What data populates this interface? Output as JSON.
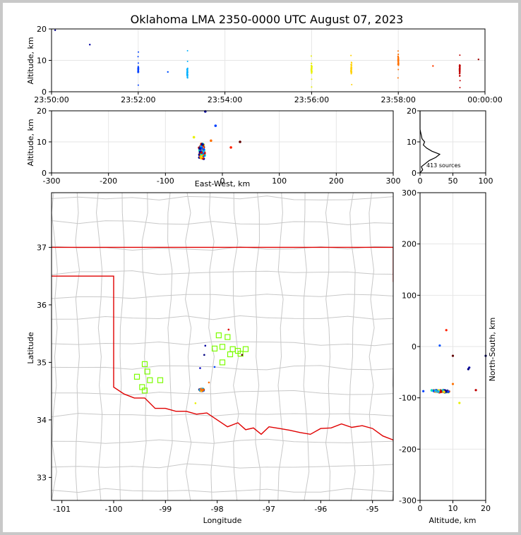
{
  "figure": {
    "title": "Oklahoma LMA 2350-0000 UTC August 07, 2023",
    "source_count_label": "413 sources"
  },
  "colors": {
    "frame": "#c8c8c8",
    "state_border": "#e00000",
    "county_border": "#c8c8c8",
    "station": "#7cfc00",
    "grid": "#e6e6e6"
  },
  "chart_data": [
    {
      "name": "time-altitude",
      "type": "scatter",
      "xlabel": "",
      "ylabel": "Altitude, km",
      "xticks": [
        "23:50:00",
        "23:52:00",
        "23:54:00",
        "23:56:00",
        "23:58:00",
        "00:00:00"
      ],
      "xlim_seconds_after_2350": [
        0,
        600
      ],
      "ylim": [
        0,
        20
      ],
      "yticks": [
        0,
        10,
        20
      ],
      "clusters": [
        {
          "time": "23:52:00",
          "altitude_center_km": 7,
          "color": "#0040ff"
        },
        {
          "time": "23:53:08",
          "altitude_center_km": 6,
          "color": "#00b0ff"
        },
        {
          "time": "23:56:00",
          "altitude_center_km": 7,
          "color": "#e8f000"
        },
        {
          "time": "23:56:55",
          "altitude_center_km": 7,
          "color": "#ffd000"
        },
        {
          "time": "23:58:00",
          "altitude_center_km": 10,
          "color": "#ff7000"
        },
        {
          "time": "23:59:25",
          "altitude_center_km": 7,
          "color": "#c00000"
        }
      ]
    },
    {
      "name": "east-west-altitude",
      "type": "scatter",
      "xlabel": "East-West, km",
      "ylabel": "Altitude, km",
      "xlim": [
        -300,
        300
      ],
      "xticks": [
        -300,
        -200,
        -100,
        0,
        100,
        200,
        300
      ],
      "ylim": [
        0,
        20
      ],
      "yticks": [
        0,
        10,
        20
      ]
    },
    {
      "name": "altitude-histogram",
      "type": "line",
      "xlim": [
        0,
        100
      ],
      "xticks": [
        0,
        50,
        100
      ],
      "ylim": [
        0,
        20
      ],
      "yticks": [
        0,
        10,
        20
      ],
      "annotation": "413 sources"
    },
    {
      "name": "plan-view",
      "type": "scatter",
      "xlabel": "Longitude",
      "ylabel": "Latitude",
      "xlim": [
        -101.2,
        -94.6
      ],
      "xticks": [
        -101,
        -100,
        -99,
        -98,
        -97,
        -96,
        -95
      ],
      "ylim": [
        32.6,
        37.95
      ],
      "yticks": [
        33,
        34,
        35,
        36,
        37
      ],
      "source_cluster_center": {
        "lon": -98.3,
        "lat": 34.52
      },
      "stations": [
        [
          -99.4,
          34.97
        ],
        [
          -99.35,
          34.84
        ],
        [
          -99.55,
          34.75
        ],
        [
          -99.3,
          34.69
        ],
        [
          -99.45,
          34.57
        ],
        [
          -99.4,
          34.51
        ],
        [
          -99.1,
          34.69
        ],
        [
          -97.97,
          35.47
        ],
        [
          -97.8,
          35.44
        ],
        [
          -97.9,
          35.27
        ],
        [
          -98.05,
          35.24
        ],
        [
          -97.7,
          35.23
        ],
        [
          -97.6,
          35.2
        ],
        [
          -97.45,
          35.23
        ],
        [
          -97.75,
          35.14
        ],
        [
          -97.55,
          35.15
        ],
        [
          -97.9,
          35.0
        ]
      ]
    },
    {
      "name": "altitude-north-south",
      "type": "scatter",
      "xlabel": "Altitude, km",
      "ylabel": "North-South, km",
      "xlim": [
        0,
        20
      ],
      "xticks": [
        0,
        10,
        20
      ],
      "ylim": [
        -300,
        300
      ],
      "yticks": [
        -300,
        -200,
        -100,
        0,
        100,
        200,
        300
      ]
    }
  ]
}
